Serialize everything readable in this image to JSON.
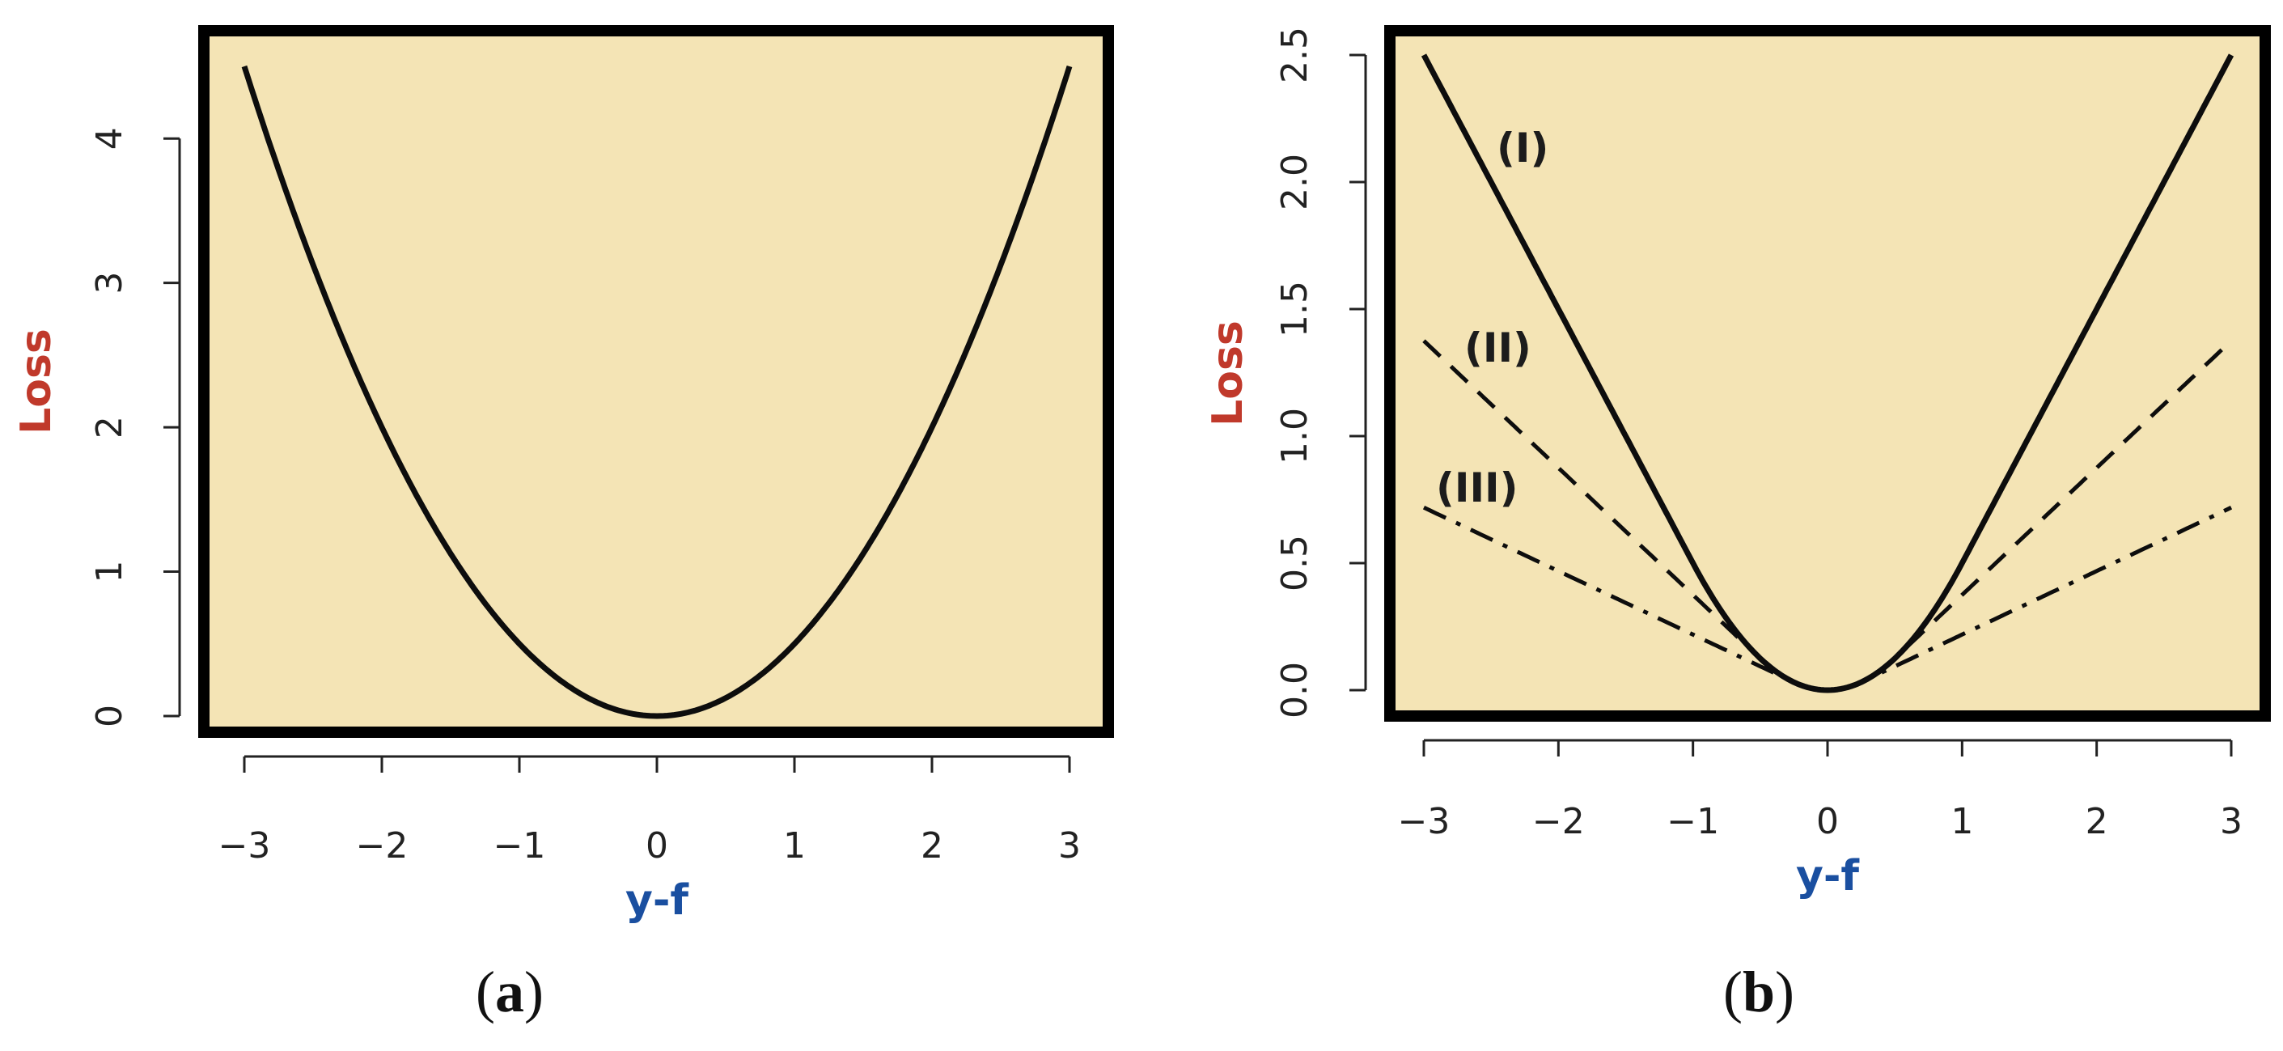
{
  "chart_data": [
    {
      "panel_label": "a",
      "type": "line",
      "xlabel": "y-f",
      "ylabel": "Loss",
      "xlim": [
        -3,
        3
      ],
      "ylim": [
        0,
        4.5
      ],
      "xticks": [
        "-3",
        "-2",
        "-1",
        "0",
        "1",
        "2",
        "3"
      ],
      "xtick_values": [
        -3,
        -2,
        -1,
        0,
        1,
        2,
        3
      ],
      "yticks": [
        "0",
        "1",
        "2",
        "3",
        "4"
      ],
      "ytick_values": [
        0,
        1,
        2,
        3,
        4
      ],
      "background": "#f4e4b5",
      "series": [
        {
          "label": "",
          "function": "squared",
          "style": "solid",
          "x": [
            -3,
            -2,
            -1,
            0,
            1,
            2,
            3
          ],
          "y": [
            4.5,
            2.0,
            0.5,
            0.0,
            0.5,
            2.0,
            4.5
          ]
        }
      ]
    },
    {
      "panel_label": "b",
      "type": "line",
      "xlabel": "y-f",
      "ylabel": "Loss",
      "xlim": [
        -3,
        3
      ],
      "ylim": [
        0,
        2.5
      ],
      "xticks": [
        "-3",
        "-2",
        "-1",
        "0",
        "1",
        "2",
        "3"
      ],
      "xtick_values": [
        -3,
        -2,
        -1,
        0,
        1,
        2,
        3
      ],
      "yticks": [
        "0.0",
        "0.5",
        "1.0",
        "1.5",
        "2.0",
        "2.5"
      ],
      "ytick_values": [
        0,
        0.5,
        1.0,
        1.5,
        2.0,
        2.5
      ],
      "background": "#f4e4b5",
      "series": [
        {
          "label": "(I)",
          "function": "huber",
          "delta": 1.0,
          "style": "solid",
          "x": [
            -3,
            -1,
            0,
            1,
            3
          ],
          "y": [
            2.5,
            0.5,
            0.0,
            0.5,
            2.5
          ]
        },
        {
          "label": "(II)",
          "function": "huber",
          "delta": 0.5,
          "style": "dashed",
          "x": [
            -3,
            -0.5,
            0,
            0.5,
            3
          ],
          "y": [
            1.375,
            0.125,
            0.0,
            0.125,
            1.375
          ]
        },
        {
          "label": "(III)",
          "function": "huber",
          "delta": 0.25,
          "style": "dashdot",
          "x": [
            -3,
            -0.25,
            0,
            0.25,
            3
          ],
          "y": [
            0.719,
            0.031,
            0.0,
            0.031,
            0.719
          ]
        }
      ]
    }
  ],
  "colors": {
    "background": "#f4e4b5",
    "frame": "#000000",
    "curve": "#0d0d0d",
    "ylabel": "#c0392b",
    "xlabel": "#1a4fa0"
  }
}
